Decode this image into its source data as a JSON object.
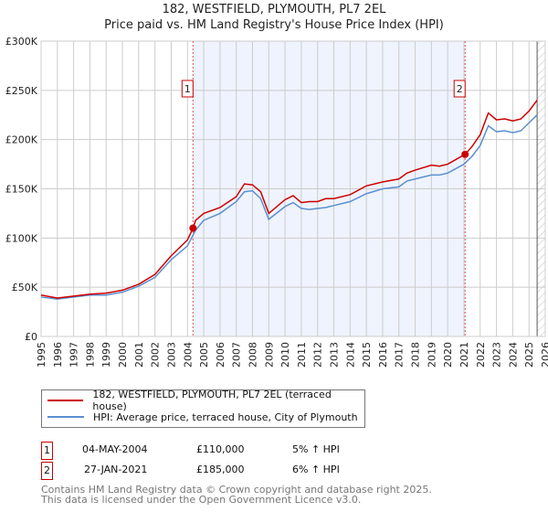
{
  "title_line1": "182, WESTFIELD, PLYMOUTH, PL7 2EL",
  "title_line2": "Price paid vs. HM Land Registry's House Price Index (HPI)",
  "chart_data": {
    "type": "line",
    "xlim": [
      1995,
      2026
    ],
    "ylim": [
      0,
      300000
    ],
    "yticks": [
      0,
      50000,
      100000,
      150000,
      200000,
      250000,
      300000
    ],
    "ytick_labels": [
      "£0",
      "£50K",
      "£100K",
      "£150K",
      "£200K",
      "£250K",
      "£300K"
    ],
    "xticks": [
      1995,
      1996,
      1997,
      1998,
      1999,
      2000,
      2001,
      2002,
      2003,
      2004,
      2005,
      2006,
      2007,
      2008,
      2009,
      2010,
      2011,
      2012,
      2013,
      2014,
      2015,
      2016,
      2017,
      2018,
      2019,
      2020,
      2021,
      2022,
      2023,
      2024,
      2025,
      2026
    ],
    "grid": true,
    "shaded_range": [
      2004.34,
      2021.07
    ],
    "forecast_hatch_from": 2025.5,
    "series": [
      {
        "name": "182, WESTFIELD, PLYMOUTH, PL7 2EL (terraced house)",
        "color": "#cc0000",
        "x": [
          1995,
          1996,
          1997,
          1998,
          1999,
          2000,
          2001,
          2002,
          2003,
          2004,
          2004.34,
          2004.5,
          2005,
          2006,
          2007,
          2007.5,
          2008,
          2008.5,
          2009,
          2010,
          2010.5,
          2011,
          2011.5,
          2012,
          2012.5,
          2013,
          2014,
          2015,
          2016,
          2017,
          2017.5,
          2018,
          2019,
          2019.5,
          2020,
          2021.07,
          2021.5,
          2022,
          2022.5,
          2023,
          2023.5,
          2024,
          2024.5,
          2025,
          2025.5
        ],
        "y": [
          42000,
          39000,
          41000,
          43000,
          44000,
          47000,
          53000,
          63000,
          82000,
          98000,
          110000,
          118000,
          125000,
          131000,
          142000,
          155000,
          154000,
          147000,
          125000,
          139000,
          143000,
          136000,
          137000,
          137000,
          140000,
          140000,
          144000,
          153000,
          157000,
          160000,
          166000,
          169000,
          174000,
          173000,
          175000,
          185000,
          193000,
          205000,
          227000,
          220000,
          221000,
          219000,
          221000,
          229000,
          240000
        ]
      },
      {
        "name": "HPI: Average price, terraced house, City of Plymouth",
        "color": "#5b8fd0",
        "x": [
          1995,
          1996,
          1997,
          1998,
          1999,
          2000,
          2001,
          2002,
          2003,
          2004,
          2004.5,
          2005,
          2006,
          2007,
          2007.5,
          2008,
          2008.5,
          2009,
          2010,
          2010.5,
          2011,
          2011.5,
          2012,
          2012.5,
          2013,
          2014,
          2015,
          2016,
          2017,
          2017.5,
          2018,
          2019,
          2019.5,
          2020,
          2021,
          2021.5,
          2022,
          2022.5,
          2023,
          2023.5,
          2024,
          2024.5,
          2025,
          2025.5
        ],
        "y": [
          40000,
          38000,
          40000,
          42000,
          42000,
          45000,
          51000,
          60000,
          78000,
          92000,
          108000,
          118000,
          125000,
          137000,
          147000,
          148000,
          140000,
          119000,
          132000,
          136000,
          130000,
          129000,
          130000,
          131000,
          133000,
          137000,
          145000,
          150000,
          152000,
          158000,
          160000,
          164000,
          164000,
          166000,
          175000,
          183000,
          194000,
          214000,
          208000,
          209000,
          207000,
          209000,
          217000,
          225000
        ]
      }
    ],
    "sales": [
      {
        "label": "1",
        "x": 2004.34,
        "y": 110000
      },
      {
        "label": "2",
        "x": 2021.07,
        "y": 185000
      }
    ]
  },
  "legend": {
    "red": "182, WESTFIELD, PLYMOUTH, PL7 2EL (terraced house)",
    "blue": "HPI: Average price, terraced house, City of Plymouth"
  },
  "transactions": [
    {
      "num": "1",
      "date": "04-MAY-2004",
      "price": "£110,000",
      "hpi": "5% ↑ HPI"
    },
    {
      "num": "2",
      "date": "27-JAN-2021",
      "price": "£185,000",
      "hpi": "6% ↑ HPI"
    }
  ],
  "footnote_line1": "Contains HM Land Registry data © Crown copyright and database right 2025.",
  "footnote_line2": "This data is licensed under the Open Government Licence v3.0."
}
